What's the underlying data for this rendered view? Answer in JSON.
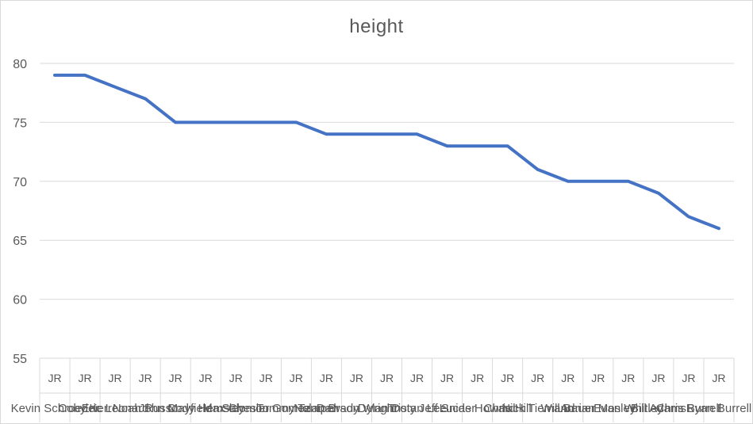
{
  "chart_data": {
    "type": "line",
    "title": "height",
    "xlabel": "",
    "ylabel": "",
    "ylim": [
      55,
      80
    ],
    "yticks": [
      80,
      75,
      70,
      65,
      60,
      55
    ],
    "grid": true,
    "legend": "none",
    "color": "#4472c4",
    "categories": [
      {
        "group": "JR",
        "name": "Kevin Schroeder"
      },
      {
        "group": "JR",
        "name": "Coby Kerr"
      },
      {
        "group": "JR",
        "name": "Eric Leonard"
      },
      {
        "group": "JR",
        "name": "Noah Russo"
      },
      {
        "group": "JR",
        "name": "John Mayfield"
      },
      {
        "group": "JR",
        "name": "Cody Hemsley"
      },
      {
        "group": "JR",
        "name": "Max Chesler"
      },
      {
        "group": "JR",
        "name": "Salomon Gomez"
      },
      {
        "group": "JR",
        "name": "Tommy Tempel"
      },
      {
        "group": "JR",
        "name": "Nolan Brady"
      },
      {
        "group": "JR",
        "name": "Dawson Wright"
      },
      {
        "group": "JR",
        "name": "Dylan Doty"
      },
      {
        "group": "JR",
        "name": "Tristan Lee"
      },
      {
        "group": "JR",
        "name": "Jeff Snider"
      },
      {
        "group": "JR",
        "name": "Lucas Howard"
      },
      {
        "group": "JR",
        "name": "Chris Hill"
      },
      {
        "group": "JR",
        "name": "Nick Tiemann"
      },
      {
        "group": "JR",
        "name": "Will Bauer"
      },
      {
        "group": "JR",
        "name": "Adrian Mosley"
      },
      {
        "group": "JR",
        "name": "Evan Whitley"
      },
      {
        "group": "JR",
        "name": "Bill Adams"
      },
      {
        "group": "JR",
        "name": "Chris Burrell"
      },
      {
        "group": "JR",
        "name": "Ryan Burrell"
      }
    ],
    "series": [
      {
        "values": [
          79,
          79,
          78,
          77,
          75,
          75,
          75,
          75,
          75,
          74,
          74,
          74,
          74,
          73,
          73,
          73,
          71,
          70,
          70,
          70,
          69,
          67,
          66
        ]
      }
    ]
  }
}
